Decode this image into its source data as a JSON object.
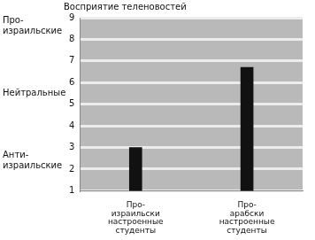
{
  "chart_data": {
    "type": "bar",
    "title": "Восприятие теленовостей",
    "categories": [
      [
        "Про-",
        "израильски",
        "настроенные",
        "студенты"
      ],
      [
        "Про-",
        "арабски",
        "настроенные",
        "студенты"
      ]
    ],
    "values": [
      3.0,
      6.7
    ],
    "color": "#111111",
    "ylim": [
      1,
      9
    ],
    "yticks": [
      1,
      2,
      3,
      4,
      5,
      6,
      7,
      8,
      9
    ],
    "grid": true,
    "annotations": [
      {
        "text": [
          "Про-",
          "израильские"
        ],
        "y": 8.6
      },
      {
        "text": [
          "Нейтральные"
        ],
        "y": 5.5
      },
      {
        "text": [
          "Анти-",
          "израильские"
        ],
        "y": 2.4
      }
    ]
  }
}
